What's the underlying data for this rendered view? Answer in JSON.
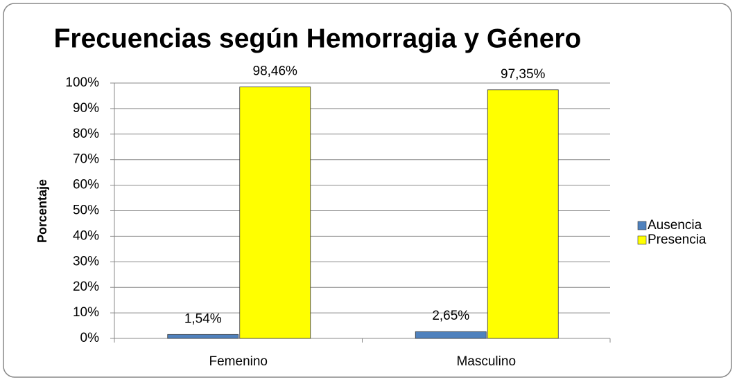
{
  "chart_data": {
    "type": "bar",
    "title": "Frecuencias según Hemorragia y Género",
    "y_label": "Porcentaje",
    "categories": [
      "Femenino",
      "Masculino"
    ],
    "series": [
      {
        "name": "Ausencia",
        "color": "#4f81bd",
        "values": [
          1.54,
          2.65
        ],
        "value_labels": [
          "1,54%",
          "2,65%"
        ]
      },
      {
        "name": "Presencia",
        "color": "#ffff00",
        "values": [
          98.46,
          97.35
        ],
        "value_labels": [
          "98,46%",
          "97,35%"
        ]
      }
    ],
    "ylim": [
      0,
      100
    ],
    "yticks": [
      {
        "value": 0,
        "label": "0%"
      },
      {
        "value": 10,
        "label": "10%"
      },
      {
        "value": 20,
        "label": "20%"
      },
      {
        "value": 30,
        "label": "30%"
      },
      {
        "value": 40,
        "label": "40%"
      },
      {
        "value": 50,
        "label": "50%"
      },
      {
        "value": 60,
        "label": "60%"
      },
      {
        "value": 70,
        "label": "70%"
      },
      {
        "value": 80,
        "label": "80%"
      },
      {
        "value": 90,
        "label": "90%"
      },
      {
        "value": 100,
        "label": "100%"
      }
    ],
    "grid": true,
    "legend": "right"
  }
}
